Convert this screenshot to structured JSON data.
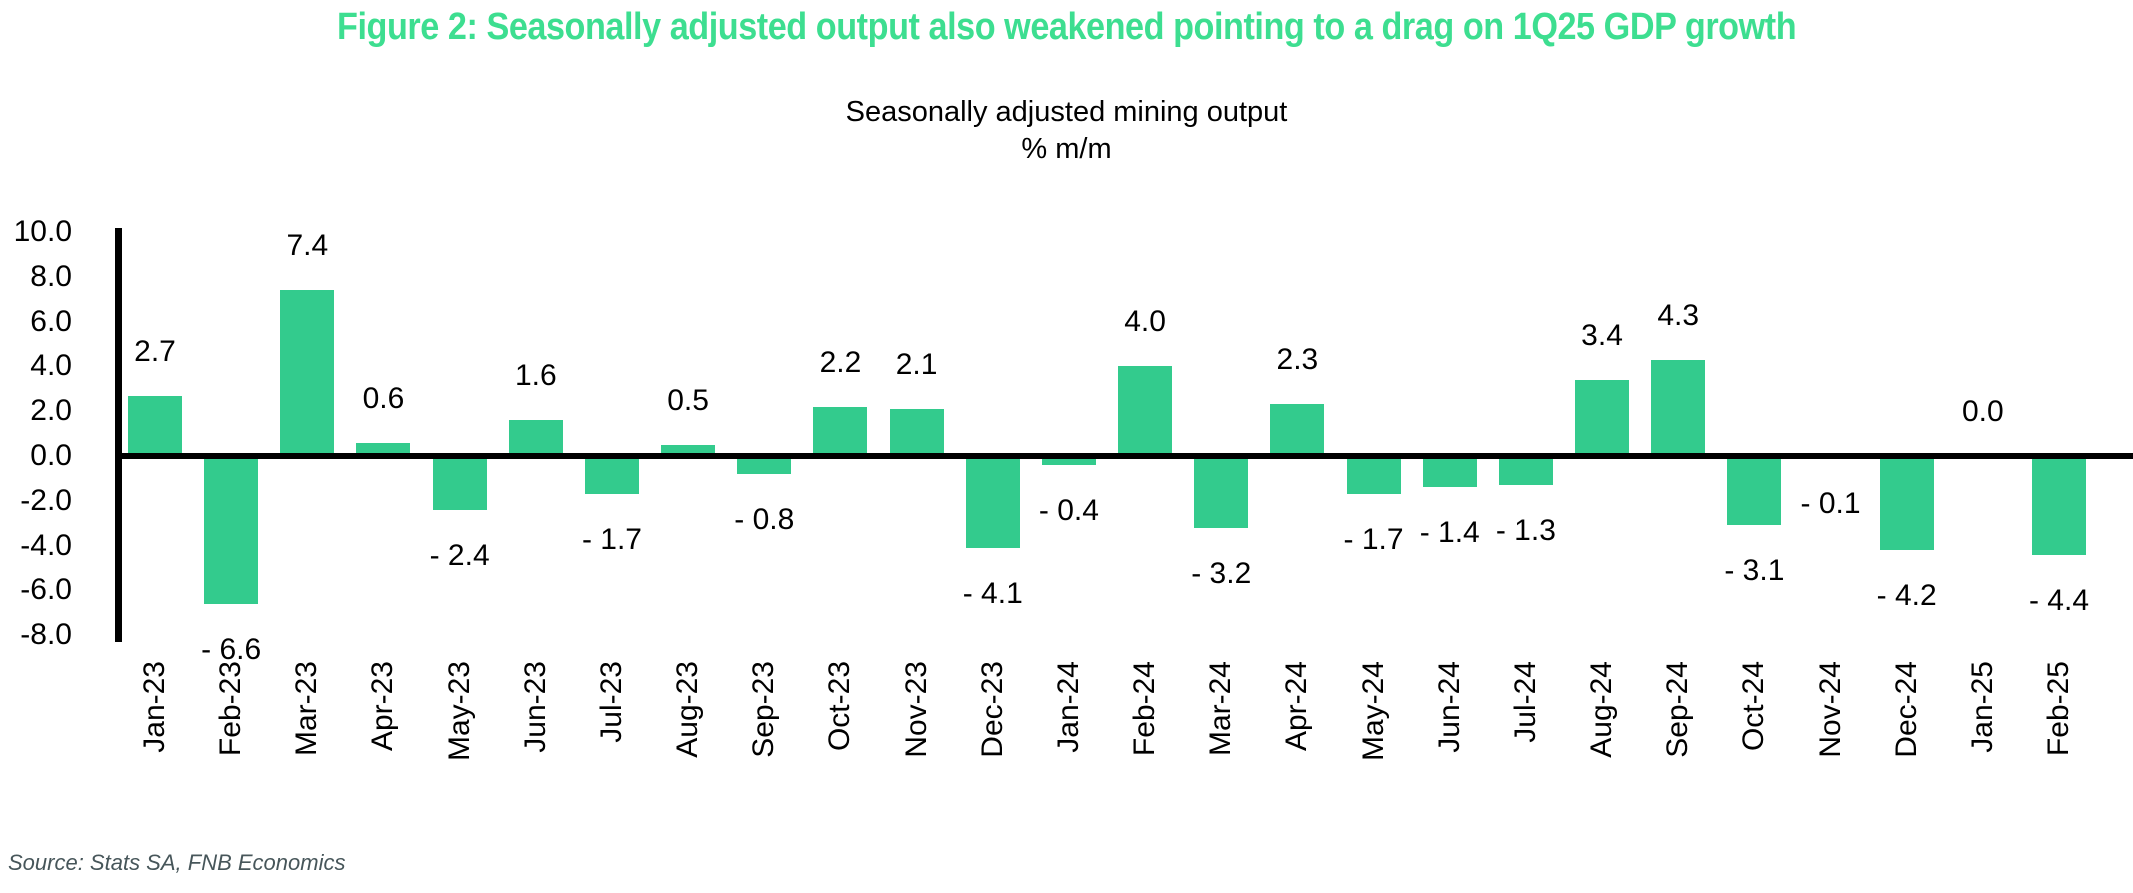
{
  "header": {
    "title": "Figure 2: Seasonally adjusted output also weakened pointing to a drag on 1Q25 GDP growth"
  },
  "chart": {
    "subtitle_line1": "Seasonally adjusted mining output",
    "subtitle_line2": "% m/m"
  },
  "chart_data": {
    "type": "bar",
    "title": "Seasonally adjusted mining output",
    "ylabel": "% m/m",
    "categories": [
      "Jan-23",
      "Feb-23",
      "Mar-23",
      "Apr-23",
      "May-23",
      "Jun-23",
      "Jul-23",
      "Aug-23",
      "Sep-23",
      "Oct-23",
      "Nov-23",
      "Dec-23",
      "Jan-24",
      "Feb-24",
      "Mar-24",
      "Apr-24",
      "May-24",
      "Jun-24",
      "Jul-24",
      "Aug-24",
      "Sep-24",
      "Oct-24",
      "Nov-24",
      "Dec-24",
      "Jan-25",
      "Feb-25"
    ],
    "values": [
      2.7,
      -6.6,
      7.4,
      0.6,
      -2.4,
      1.6,
      -1.7,
      0.5,
      -0.8,
      2.2,
      2.1,
      -4.1,
      -0.4,
      4.0,
      -3.2,
      2.3,
      -1.7,
      -1.4,
      -1.3,
      3.4,
      4.3,
      -3.1,
      -0.1,
      -4.2,
      0.0,
      -4.4
    ],
    "value_labels": [
      "2.7",
      "- 6.6",
      "7.4",
      "0.6",
      "- 2.4",
      "1.6",
      "- 1.7",
      "0.5",
      "- 0.8",
      "2.2",
      "2.1",
      "- 4.1",
      "- 0.4",
      "4.0",
      "- 3.2",
      "2.3",
      "- 1.7",
      "- 1.4",
      "- 1.3",
      "3.4",
      "4.3",
      "- 3.1",
      "- 0.1",
      "- 4.2",
      "0.0",
      "- 4.4"
    ],
    "ytick_labels": [
      "10.0",
      "8.0",
      "6.0",
      "4.0",
      "2.0",
      "0.0",
      "-2.0",
      "-4.0",
      "-6.0",
      "-8.0"
    ],
    "ytick_values": [
      10,
      8,
      6,
      4,
      2,
      0,
      -2,
      -4,
      -6,
      -8
    ],
    "ylim": [
      -8,
      10
    ],
    "grid": false,
    "legend_position": "none"
  },
  "footer": {
    "source": "Source: Stats SA, FNB Economics"
  },
  "colors": {
    "title_green": "#3DDE90",
    "bar_green": "#33CB8D",
    "axis_black": "#000000",
    "source_gray": "#47565A"
  }
}
